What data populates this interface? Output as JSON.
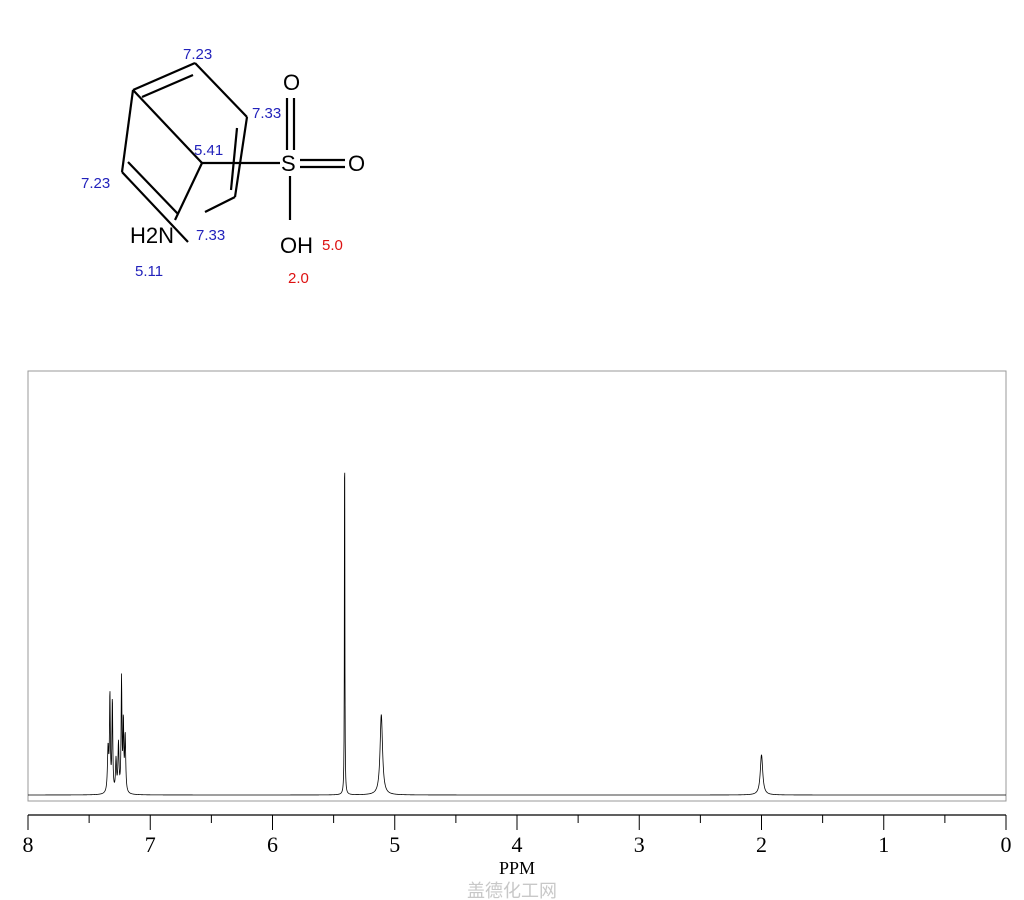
{
  "molecule": {
    "atoms": {
      "s": "S",
      "o1": "O",
      "o2": "O",
      "oh": "OH",
      "nh2": "H2N"
    },
    "shift_labels": [
      {
        "text": "7.23",
        "color": "#2222bb"
      },
      {
        "text": "7.33",
        "color": "#2222bb"
      },
      {
        "text": "5.41",
        "color": "#2222bb"
      },
      {
        "text": "7.23",
        "color": "#2222bb"
      },
      {
        "text": "7.33",
        "color": "#2222bb"
      },
      {
        "text": "5.11",
        "color": "#2222bb"
      },
      {
        "text": "5.0",
        "color": "#dd1111"
      },
      {
        "text": "2.0",
        "color": "#dd1111"
      }
    ]
  },
  "chart_data": {
    "type": "line",
    "title": "",
    "xlabel": "PPM",
    "ylabel": "",
    "xlim": [
      8,
      0
    ],
    "x_reversed": true,
    "xticks": [
      "8",
      "7",
      "6",
      "5",
      "4",
      "3",
      "2",
      "1",
      "0"
    ],
    "minor_tick_step": 0.5,
    "grid": false,
    "line_color": "#000000",
    "peaks": [
      {
        "ppm": 7.345,
        "intensity": 0.11,
        "width": 0.006
      },
      {
        "ppm": 7.33,
        "intensity": 0.24,
        "width": 0.004
      },
      {
        "ppm": 7.31,
        "intensity": 0.23,
        "width": 0.004
      },
      {
        "ppm": 7.28,
        "intensity": 0.08,
        "width": 0.005
      },
      {
        "ppm": 7.26,
        "intensity": 0.12,
        "width": 0.005
      },
      {
        "ppm": 7.235,
        "intensity": 0.28,
        "width": 0.004
      },
      {
        "ppm": 7.22,
        "intensity": 0.17,
        "width": 0.004
      },
      {
        "ppm": 7.205,
        "intensity": 0.14,
        "width": 0.005
      },
      {
        "ppm": 5.41,
        "intensity": 1.0,
        "width": 0.002
      },
      {
        "ppm": 5.11,
        "intensity": 0.2,
        "width": 0.012
      },
      {
        "ppm": 2.0,
        "intensity": 0.1,
        "width": 0.012
      }
    ]
  },
  "watermark": "盖德化工网"
}
